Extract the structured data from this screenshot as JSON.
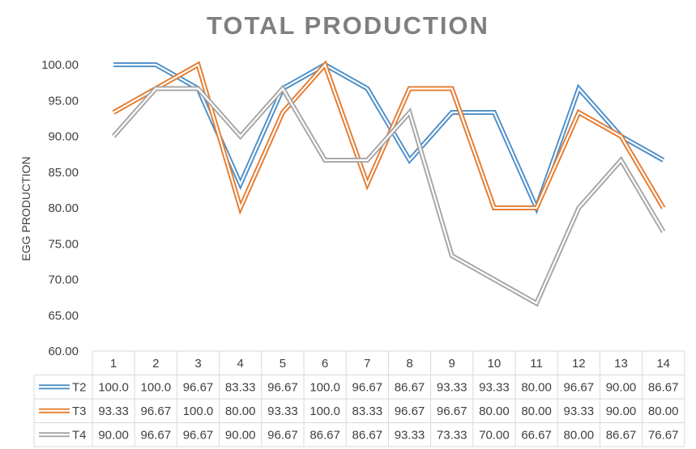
{
  "chart_data": {
    "type": "line",
    "title": "TOTAL PRODUCTION",
    "ylabel": "EGG PRODUCTION",
    "xlabel": "",
    "ylim": [
      60,
      100
    ],
    "ytick_labels": [
      "60.00",
      "65.00",
      "70.00",
      "75.00",
      "80.00",
      "85.00",
      "90.00",
      "95.00",
      "100.00"
    ],
    "categories": [
      "1",
      "2",
      "3",
      "4",
      "5",
      "6",
      "7",
      "8",
      "9",
      "10",
      "11",
      "12",
      "13",
      "14"
    ],
    "grid": false,
    "legend": "data-table",
    "series": [
      {
        "name": "T2",
        "color": "#4a8ec9",
        "values": [
          100.0,
          100.0,
          96.67,
          83.33,
          96.67,
          100.0,
          96.67,
          86.67,
          93.33,
          93.33,
          80.0,
          96.67,
          90.0,
          86.67
        ],
        "labels": [
          "100.0",
          "100.0",
          "96.67",
          "83.33",
          "96.67",
          "100.0",
          "96.67",
          "86.67",
          "93.33",
          "93.33",
          "80.00",
          "96.67",
          "90.00",
          "86.67"
        ]
      },
      {
        "name": "T3",
        "color": "#e57a2e",
        "values": [
          93.33,
          96.67,
          100.0,
          80.0,
          93.33,
          100.0,
          83.33,
          96.67,
          96.67,
          80.0,
          80.0,
          93.33,
          90.0,
          80.0
        ],
        "labels": [
          "93.33",
          "96.67",
          "100.0",
          "80.00",
          "93.33",
          "100.0",
          "83.33",
          "96.67",
          "96.67",
          "80.00",
          "80.00",
          "93.33",
          "90.00",
          "80.00"
        ]
      },
      {
        "name": "T4",
        "color": "#a5a5a5",
        "values": [
          90.0,
          96.67,
          96.67,
          90.0,
          96.67,
          86.67,
          86.67,
          93.33,
          73.33,
          70.0,
          66.67,
          80.0,
          86.67,
          76.67
        ],
        "labels": [
          "90.00",
          "96.67",
          "96.67",
          "90.00",
          "96.67",
          "86.67",
          "86.67",
          "93.33",
          "73.33",
          "70.00",
          "66.67",
          "80.00",
          "86.67",
          "76.67"
        ]
      }
    ]
  }
}
